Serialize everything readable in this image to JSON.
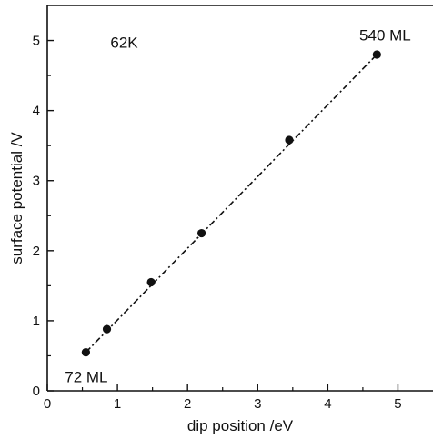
{
  "chart_data": {
    "type": "scatter",
    "xlabel": "dip position /eV",
    "ylabel": "surface potential /V",
    "xlim": [
      0,
      5.5
    ],
    "ylim": [
      0,
      5.5
    ],
    "x_ticks": [
      0,
      1,
      2,
      3,
      4,
      5
    ],
    "y_ticks": [
      0,
      1,
      2,
      3,
      4,
      5
    ],
    "grid": false,
    "legend": "none",
    "series": [
      {
        "points": [
          {
            "x": 0.55,
            "y": 0.55
          },
          {
            "x": 0.85,
            "y": 0.88
          },
          {
            "x": 1.48,
            "y": 1.55
          },
          {
            "x": 2.2,
            "y": 2.25
          },
          {
            "x": 3.45,
            "y": 3.58
          },
          {
            "x": 4.7,
            "y": 4.8
          }
        ]
      }
    ],
    "fit_line": {
      "x": [
        0.55,
        4.7
      ],
      "y": [
        0.55,
        4.8
      ],
      "style": "dash-dot"
    },
    "annotations": [
      {
        "text": "62K",
        "x": 0.9,
        "y": 4.9
      },
      {
        "text": "540 ML",
        "x": 4.45,
        "y": 5.0
      },
      {
        "text": "72 ML",
        "x": 0.25,
        "y": 0.12
      }
    ],
    "colors": {
      "marks": "#111111",
      "background": "#ffffff"
    }
  }
}
